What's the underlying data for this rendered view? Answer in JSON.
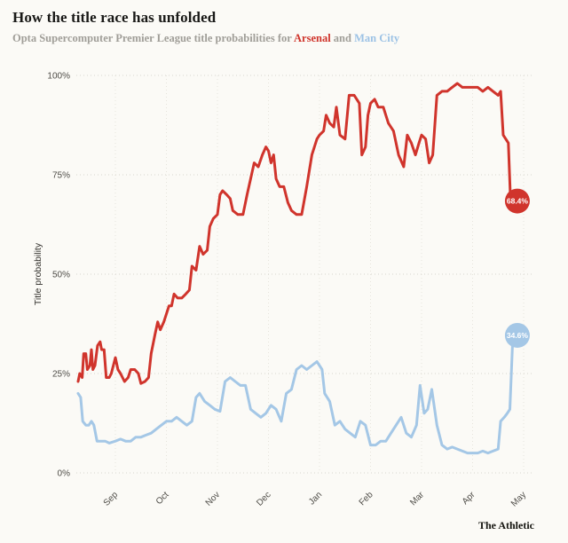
{
  "header": {
    "title": "How the title race has unfolded",
    "subtitle_prefix": "Opta Supercomputer Premier League title probabilities for ",
    "team1": "Arsenal",
    "subtitle_and": " and ",
    "team2": "Man City"
  },
  "footer": {
    "credit": "The Athletic"
  },
  "colors": {
    "arsenal": "#d0342c",
    "man_city": "#a4c7e6",
    "background": "#fbfaf6",
    "gridline": "#d7d5cd",
    "tick_text": "#4e4c47"
  },
  "chart_data": {
    "type": "line",
    "title": "How the title race has unfolded",
    "subtitle": "Opta Supercomputer Premier League title probabilities for Arsenal and Man City",
    "xlabel": "",
    "ylabel": "Title probability",
    "ylim": [
      0,
      100
    ],
    "grid": "dotted",
    "legend_position": "none",
    "x_units": "months (Sep = 0, May = 8)",
    "y_ticks": [
      "0%",
      "25%",
      "50%",
      "75%",
      "100%"
    ],
    "x_ticks": [
      "Sep",
      "Oct",
      "Nov",
      "Dec",
      "Jan",
      "Feb",
      "Mar",
      "Apr",
      "May"
    ],
    "series": [
      {
        "name": "Man City",
        "color": "#a4c7e6",
        "end_label": "34.6%",
        "points": [
          [
            -0.73,
            20
          ],
          [
            -0.68,
            19
          ],
          [
            -0.64,
            13
          ],
          [
            -0.58,
            12
          ],
          [
            -0.52,
            12
          ],
          [
            -0.47,
            13
          ],
          [
            -0.42,
            12
          ],
          [
            -0.36,
            8
          ],
          [
            -0.28,
            8
          ],
          [
            -0.2,
            8
          ],
          [
            -0.12,
            7.5
          ],
          [
            0,
            8
          ],
          [
            0.1,
            8.5
          ],
          [
            0.2,
            8
          ],
          [
            0.3,
            8
          ],
          [
            0.4,
            9
          ],
          [
            0.5,
            9
          ],
          [
            0.6,
            9.5
          ],
          [
            0.7,
            10
          ],
          [
            0.8,
            11
          ],
          [
            0.9,
            12
          ],
          [
            1,
            13
          ],
          [
            1.1,
            13
          ],
          [
            1.2,
            14
          ],
          [
            1.3,
            13
          ],
          [
            1.4,
            12
          ],
          [
            1.5,
            13
          ],
          [
            1.58,
            19
          ],
          [
            1.65,
            20
          ],
          [
            1.75,
            18
          ],
          [
            1.85,
            17
          ],
          [
            1.95,
            16
          ],
          [
            2.05,
            15.5
          ],
          [
            2.15,
            23
          ],
          [
            2.25,
            24
          ],
          [
            2.35,
            23
          ],
          [
            2.45,
            22
          ],
          [
            2.55,
            22
          ],
          [
            2.65,
            16
          ],
          [
            2.75,
            15
          ],
          [
            2.85,
            14
          ],
          [
            2.95,
            15
          ],
          [
            3.05,
            17
          ],
          [
            3.15,
            16
          ],
          [
            3.25,
            13
          ],
          [
            3.35,
            20
          ],
          [
            3.45,
            21
          ],
          [
            3.55,
            26
          ],
          [
            3.65,
            27
          ],
          [
            3.75,
            26
          ],
          [
            3.85,
            27
          ],
          [
            3.95,
            28
          ],
          [
            4,
            27
          ],
          [
            4.05,
            26
          ],
          [
            4.1,
            20
          ],
          [
            4.2,
            18
          ],
          [
            4.3,
            12
          ],
          [
            4.4,
            13
          ],
          [
            4.5,
            11
          ],
          [
            4.6,
            10
          ],
          [
            4.7,
            9
          ],
          [
            4.8,
            13
          ],
          [
            4.9,
            12
          ],
          [
            5,
            7
          ],
          [
            5.1,
            7
          ],
          [
            5.2,
            8
          ],
          [
            5.3,
            8
          ],
          [
            5.4,
            10
          ],
          [
            5.5,
            12
          ],
          [
            5.6,
            14
          ],
          [
            5.7,
            10
          ],
          [
            5.8,
            9
          ],
          [
            5.9,
            12
          ],
          [
            5.97,
            22
          ],
          [
            6.05,
            15
          ],
          [
            6.12,
            16
          ],
          [
            6.2,
            21
          ],
          [
            6.3,
            12
          ],
          [
            6.4,
            7
          ],
          [
            6.5,
            6
          ],
          [
            6.6,
            6.5
          ],
          [
            6.7,
            6
          ],
          [
            6.8,
            5.5
          ],
          [
            6.9,
            5
          ],
          [
            7,
            5
          ],
          [
            7.1,
            5
          ],
          [
            7.2,
            5.5
          ],
          [
            7.3,
            5
          ],
          [
            7.4,
            5.5
          ],
          [
            7.5,
            6
          ],
          [
            7.55,
            13
          ],
          [
            7.62,
            14
          ],
          [
            7.68,
            15
          ],
          [
            7.73,
            16
          ],
          [
            7.79,
            34.6
          ]
        ]
      },
      {
        "name": "Arsenal",
        "color": "#d0342c",
        "end_label": "68.4%",
        "points": [
          [
            -0.73,
            23
          ],
          [
            -0.7,
            25
          ],
          [
            -0.65,
            24
          ],
          [
            -0.62,
            30
          ],
          [
            -0.58,
            30
          ],
          [
            -0.55,
            26
          ],
          [
            -0.5,
            27
          ],
          [
            -0.47,
            31
          ],
          [
            -0.44,
            26
          ],
          [
            -0.4,
            27
          ],
          [
            -0.35,
            32
          ],
          [
            -0.3,
            33
          ],
          [
            -0.27,
            31
          ],
          [
            -0.22,
            31
          ],
          [
            -0.18,
            24
          ],
          [
            -0.12,
            24
          ],
          [
            -0.08,
            25
          ],
          [
            0,
            29
          ],
          [
            0.05,
            26
          ],
          [
            0.1,
            25
          ],
          [
            0.18,
            23
          ],
          [
            0.25,
            24
          ],
          [
            0.3,
            26
          ],
          [
            0.38,
            26
          ],
          [
            0.45,
            25
          ],
          [
            0.5,
            22.5
          ],
          [
            0.58,
            23
          ],
          [
            0.65,
            24
          ],
          [
            0.7,
            30
          ],
          [
            0.78,
            35
          ],
          [
            0.83,
            38
          ],
          [
            0.88,
            36
          ],
          [
            0.95,
            38
          ],
          [
            1,
            40
          ],
          [
            1.05,
            42
          ],
          [
            1.1,
            42
          ],
          [
            1.15,
            45
          ],
          [
            1.22,
            44
          ],
          [
            1.3,
            44
          ],
          [
            1.38,
            45
          ],
          [
            1.45,
            46
          ],
          [
            1.5,
            52
          ],
          [
            1.58,
            51
          ],
          [
            1.65,
            57
          ],
          [
            1.72,
            55
          ],
          [
            1.8,
            56
          ],
          [
            1.85,
            62
          ],
          [
            1.92,
            64
          ],
          [
            2,
            65
          ],
          [
            2.05,
            70
          ],
          [
            2.1,
            71
          ],
          [
            2.18,
            70
          ],
          [
            2.25,
            69
          ],
          [
            2.3,
            66
          ],
          [
            2.4,
            65
          ],
          [
            2.5,
            65
          ],
          [
            2.58,
            70
          ],
          [
            2.65,
            74
          ],
          [
            2.72,
            78
          ],
          [
            2.8,
            77
          ],
          [
            2.88,
            80
          ],
          [
            2.95,
            82
          ],
          [
            3,
            81
          ],
          [
            3.05,
            78
          ],
          [
            3.1,
            80
          ],
          [
            3.15,
            74
          ],
          [
            3.22,
            72
          ],
          [
            3.3,
            72
          ],
          [
            3.38,
            68
          ],
          [
            3.45,
            66
          ],
          [
            3.55,
            65
          ],
          [
            3.65,
            65
          ],
          [
            3.75,
            72
          ],
          [
            3.85,
            80
          ],
          [
            3.95,
            84
          ],
          [
            4,
            85
          ],
          [
            4.08,
            86
          ],
          [
            4.13,
            90
          ],
          [
            4.2,
            88
          ],
          [
            4.28,
            87
          ],
          [
            4.33,
            92
          ],
          [
            4.4,
            85
          ],
          [
            4.5,
            84
          ],
          [
            4.58,
            95
          ],
          [
            4.68,
            95
          ],
          [
            4.78,
            93
          ],
          [
            4.83,
            80
          ],
          [
            4.9,
            82
          ],
          [
            4.95,
            90
          ],
          [
            5,
            93
          ],
          [
            5.08,
            94
          ],
          [
            5.15,
            92
          ],
          [
            5.25,
            92
          ],
          [
            5.35,
            88
          ],
          [
            5.45,
            86
          ],
          [
            5.55,
            80
          ],
          [
            5.65,
            77
          ],
          [
            5.72,
            85
          ],
          [
            5.8,
            83
          ],
          [
            5.88,
            80
          ],
          [
            5.95,
            83
          ],
          [
            6,
            85
          ],
          [
            6.08,
            84
          ],
          [
            6.15,
            78
          ],
          [
            6.22,
            80
          ],
          [
            6.3,
            95
          ],
          [
            6.4,
            96
          ],
          [
            6.5,
            96
          ],
          [
            6.6,
            97
          ],
          [
            6.7,
            98
          ],
          [
            6.8,
            97
          ],
          [
            6.9,
            97
          ],
          [
            7,
            97
          ],
          [
            7.1,
            97
          ],
          [
            7.2,
            96
          ],
          [
            7.3,
            97
          ],
          [
            7.4,
            96
          ],
          [
            7.5,
            95
          ],
          [
            7.55,
            96
          ],
          [
            7.6,
            85
          ],
          [
            7.65,
            84
          ],
          [
            7.7,
            83
          ],
          [
            7.74,
            70
          ],
          [
            7.79,
            68.4
          ]
        ]
      }
    ]
  }
}
